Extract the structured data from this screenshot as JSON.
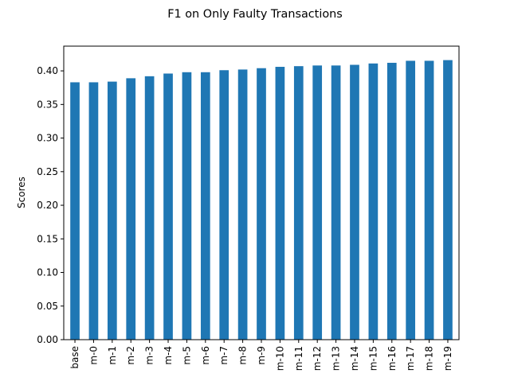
{
  "chart_data": {
    "type": "bar",
    "title": "F1 on Only Faulty Transactions",
    "xlabel": "",
    "ylabel": "Scores",
    "categories": [
      "base",
      "m-0",
      "m-1",
      "m-2",
      "m-3",
      "m-4",
      "m-5",
      "m-6",
      "m-7",
      "m-8",
      "m-9",
      "m-10",
      "m-11",
      "m-12",
      "m-13",
      "m-14",
      "m-15",
      "m-16",
      "m-17",
      "m-18",
      "m-19"
    ],
    "values": [
      0.383,
      0.383,
      0.384,
      0.389,
      0.392,
      0.396,
      0.398,
      0.398,
      0.401,
      0.402,
      0.404,
      0.406,
      0.407,
      0.408,
      0.408,
      0.409,
      0.411,
      0.412,
      0.415,
      0.415,
      0.416
    ],
    "ylim": [
      0,
      0.4368
    ],
    "yticks": [
      "0.00",
      "0.05",
      "0.10",
      "0.15",
      "0.20",
      "0.25",
      "0.30",
      "0.35",
      "0.40"
    ],
    "bar_color": "#1f77b4",
    "grid": false,
    "legend": "none"
  }
}
